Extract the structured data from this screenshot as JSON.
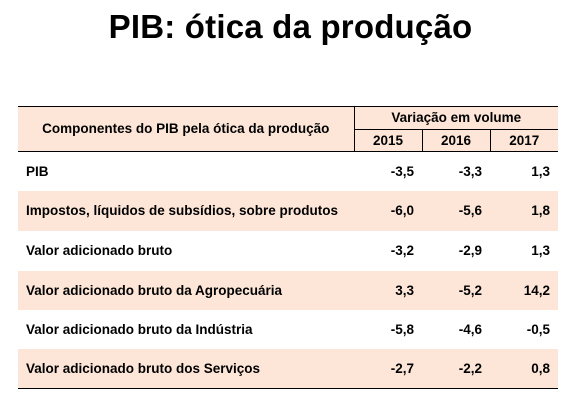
{
  "title": "PIB: ótica da produção",
  "table": {
    "header_component": "Componentes do PIB pela ótica da produção",
    "header_variation": "Variação em volume",
    "years": [
      "2015",
      "2016",
      "2017"
    ],
    "rows": [
      {
        "label": "PIB",
        "values": [
          "-3,5",
          "-3,3",
          "1,3"
        ]
      },
      {
        "label": "Impostos, líquidos de subsídios, sobre produtos",
        "values": [
          "-6,0",
          "-5,6",
          "1,8"
        ]
      },
      {
        "label": "Valor adicionado bruto",
        "values": [
          "-3,2",
          "-2,9",
          "1,3"
        ]
      },
      {
        "label": "Valor adicionado bruto da Agropecuária",
        "values": [
          "3,3",
          "-5,2",
          "14,2"
        ]
      },
      {
        "label": "Valor adicionado bruto da Indústria",
        "values": [
          "-5,8",
          "-4,6",
          "-0,5"
        ]
      },
      {
        "label": "Valor adicionado bruto dos Serviços",
        "values": [
          "-2,7",
          "-2,2",
          "0,8"
        ]
      }
    ]
  }
}
